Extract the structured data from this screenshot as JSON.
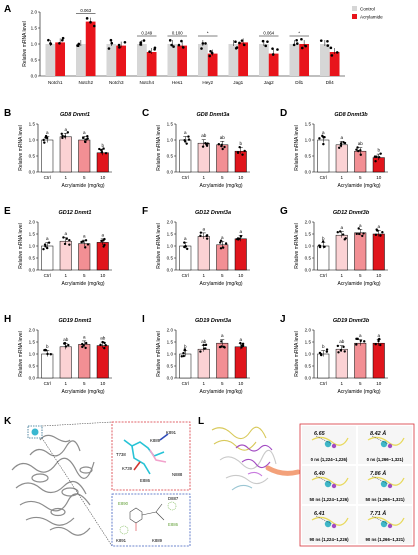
{
  "figure": {
    "panel_letters": [
      "A",
      "B",
      "C",
      "D",
      "E",
      "F",
      "G",
      "H",
      "I",
      "J",
      "K",
      "L"
    ],
    "colors": {
      "control": "#d6d6d6",
      "acrylamide": "#e8141b",
      "dose": [
        "#ffffff",
        "#fbd2d4",
        "#f28f94",
        "#e0151c"
      ],
      "point": "#000000"
    },
    "panel_K": {
      "residues": [
        "K891",
        "K889",
        "T738",
        "K739",
        "E886",
        "N888",
        "D887",
        "E890"
      ],
      "panel_letter": "K"
    },
    "panel_L": {
      "distances": [
        "8.42 Å",
        "7.86 Å",
        "7.71 Å"
      ],
      "labels_left": [
        "0 ns (1,224~1,226)",
        "50 ns (1,224~1,226)",
        "90 ns (1,224~1,226)"
      ],
      "labels_right": [
        "0 ns (1,266~1,321)",
        "50 ns (1,266~1,321)",
        "90 ns (1,266~1,321)"
      ],
      "distances_left": [
        "6.65",
        "6.40",
        "6.41"
      ],
      "panel_letter": "L"
    }
  },
  "chart_data": [
    {
      "panel": "A",
      "type": "bar",
      "ylabel": "Relative mRNA level",
      "ylim": [
        0,
        2.0
      ],
      "yticks": [
        "0.0",
        "0.5",
        "1.0",
        "1.5",
        "2.0"
      ],
      "categories": [
        "Notch1",
        "Notch2",
        "Notch3",
        "Notch4",
        "Hes1",
        "Hey2",
        "Jag1",
        "Jag2",
        "Dll1",
        "Dll4"
      ],
      "legend": [
        "Control",
        "Acrylamide"
      ],
      "series": [
        {
          "name": "Control",
          "values": [
            1.0,
            1.0,
            1.0,
            1.0,
            1.0,
            1.0,
            1.0,
            1.0,
            1.0,
            1.0
          ]
        },
        {
          "name": "Acrylamide",
          "values": [
            1.05,
            1.7,
            0.95,
            0.75,
            0.95,
            0.7,
            1.05,
            0.7,
            1.0,
            0.75
          ]
        }
      ],
      "annotations": [
        {
          "category": "Notch2",
          "text": "0.063"
        },
        {
          "category": "Notch4",
          "text": "0.249"
        },
        {
          "category": "Hes1",
          "text": "0.100"
        },
        {
          "category": "Hey2",
          "text": "*"
        },
        {
          "category": "Jag2",
          "text": "0.064"
        },
        {
          "category": "Dll1",
          "text": "*"
        }
      ]
    },
    {
      "panel": "B",
      "type": "bar",
      "title": "GD8 Dnmt1",
      "ylabel": "Relative mRNA level",
      "xlabel": "Acrylamide (mg/kg)",
      "categories": [
        "Ctrl",
        "1",
        "5",
        "10"
      ],
      "values": [
        1.0,
        1.1,
        1.0,
        0.6
      ],
      "letters": [
        "a",
        "a",
        "a",
        "b"
      ],
      "ylim": [
        0,
        1.5
      ],
      "yticks": [
        "0.0",
        "0.5",
        "1.0",
        "1.5"
      ]
    },
    {
      "panel": "C",
      "type": "bar",
      "title": "GD8 Dnmt3a",
      "ylabel": "Relative mRNA level",
      "xlabel": "Acrylamide (mg/kg)",
      "categories": [
        "Ctrl",
        "1",
        "5",
        "10"
      ],
      "values": [
        1.0,
        0.9,
        0.85,
        0.65
      ],
      "letters": [
        "a",
        "ab",
        "ab",
        "b"
      ],
      "ylim": [
        0,
        1.5
      ],
      "yticks": [
        "0.0",
        "0.5",
        "1.0",
        "1.5"
      ]
    },
    {
      "panel": "D",
      "type": "bar",
      "title": "GD8 Dnmt3b",
      "ylabel": "Relative mRNA level",
      "xlabel": "Acrylamide (mg/kg)",
      "categories": [
        "Ctrl",
        "1",
        "5",
        "10"
      ],
      "values": [
        1.0,
        0.85,
        0.65,
        0.45
      ],
      "letters": [
        "a",
        "a",
        "ab",
        "b"
      ],
      "ylim": [
        0,
        1.5
      ],
      "yticks": [
        "0.0",
        "0.5",
        "1.0",
        "1.5"
      ]
    },
    {
      "panel": "E",
      "type": "bar",
      "title": "GD12 Dnmt1",
      "ylabel": "Relative mRNA level",
      "xlabel": "Acrylamide (mg/kg)",
      "categories": [
        "Ctrl",
        "1",
        "5",
        "10"
      ],
      "values": [
        1.0,
        1.2,
        1.1,
        1.15
      ],
      "letters": [
        "a",
        "a",
        "a",
        "a"
      ],
      "ylim": [
        0,
        2.0
      ],
      "yticks": [
        "0.0",
        "0.5",
        "1.0",
        "1.5",
        "2.0"
      ]
    },
    {
      "panel": "F",
      "type": "bar",
      "title": "GD12 Dnmt3a",
      "ylabel": "Relative mRNA level",
      "xlabel": "Acrylamide (mg/kg)",
      "categories": [
        "Ctrl",
        "1",
        "5",
        "10"
      ],
      "values": [
        1.0,
        1.4,
        1.05,
        1.3
      ],
      "letters": [
        "a",
        "a",
        "a",
        "a"
      ],
      "ylim": [
        0,
        2.0
      ],
      "yticks": [
        "0.0",
        "0.5",
        "1.0",
        "1.5",
        "2.0"
      ]
    },
    {
      "panel": "G",
      "type": "bar",
      "title": "GD12 Dnmt3b",
      "ylabel": "Relative mRNA level",
      "xlabel": "Acrylamide (mg/kg)",
      "categories": [
        "Ctrl",
        "1",
        "5",
        "10"
      ],
      "values": [
        1.0,
        1.45,
        1.55,
        1.5
      ],
      "letters": [
        "b",
        "a",
        "a",
        "a"
      ],
      "ylim": [
        0,
        2.0
      ],
      "yticks": [
        "0.0",
        "0.5",
        "1.0",
        "1.5",
        "2.0"
      ]
    },
    {
      "panel": "H",
      "type": "bar",
      "title": "GD19 Dnmt1",
      "ylabel": "Relative mRNA level",
      "xlabel": "Acrylamide (mg/kg)",
      "categories": [
        "Ctrl",
        "1",
        "5",
        "10"
      ],
      "values": [
        1.0,
        1.3,
        1.4,
        1.35
      ],
      "letters": [
        "b",
        "ab",
        "a",
        "ab"
      ],
      "ylim": [
        0,
        2.0
      ],
      "yticks": [
        "0.0",
        "0.5",
        "1.0",
        "1.5",
        "2.0"
      ]
    },
    {
      "panel": "I",
      "type": "bar",
      "title": "GD19 Dnmt3a",
      "ylabel": "Relative mRNA level",
      "xlabel": "Acrylamide (mg/kg)",
      "categories": [
        "Ctrl",
        "1",
        "5",
        "10"
      ],
      "values": [
        1.0,
        1.2,
        1.45,
        1.3
      ],
      "letters": [
        "b",
        "ab",
        "a",
        "a"
      ],
      "ylim": [
        0,
        2.0
      ],
      "yticks": [
        "0.0",
        "0.5",
        "1.0",
        "1.5",
        "2.0"
      ]
    },
    {
      "panel": "J",
      "type": "bar",
      "title": "GD19 Dnmt3b",
      "ylabel": "Relative mRNA level",
      "xlabel": "Acrylamide (mg/kg)",
      "categories": [
        "Ctrl",
        "1",
        "5",
        "10"
      ],
      "values": [
        1.0,
        1.2,
        1.45,
        1.45
      ],
      "letters": [
        "b",
        "ab",
        "a",
        "a"
      ],
      "ylim": [
        0,
        2.0
      ],
      "yticks": [
        "0.0",
        "0.5",
        "1.0",
        "1.5",
        "2.0"
      ]
    }
  ]
}
